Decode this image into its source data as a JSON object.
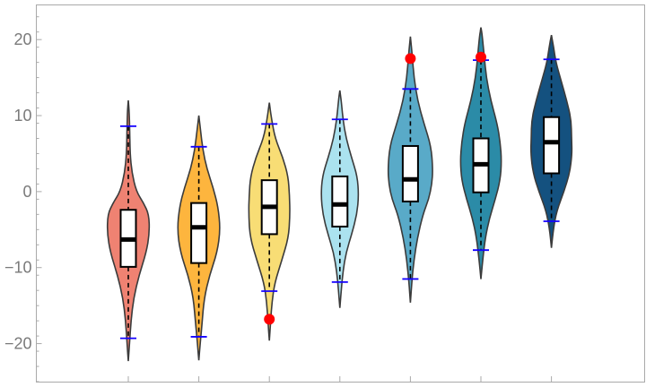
{
  "chart_data": {
    "type": "box-violin",
    "title": "",
    "xlabel": "",
    "ylabel": "",
    "ylim": [
      -25,
      24.5
    ],
    "yticks": [
      -20,
      -10,
      0,
      10,
      20
    ],
    "ytick_labels": [
      "−20",
      "−10",
      "0",
      "10",
      "20"
    ],
    "grid": false,
    "legend": "none",
    "series": [
      {
        "color": "#ef8272",
        "min": -19.3,
        "q1": -9.9,
        "median": -6.3,
        "q3": -2.4,
        "max": 8.6,
        "outliers": [],
        "violin": [
          [
            -22.3,
            0
          ],
          [
            -20,
            1.3
          ],
          [
            -17,
            3
          ],
          [
            -14,
            6
          ],
          [
            -11,
            12
          ],
          [
            -8,
            20
          ],
          [
            -5.5,
            23.5
          ],
          [
            -3,
            23
          ],
          [
            -1.5,
            17
          ],
          [
            0,
            9
          ],
          [
            2.5,
            4
          ],
          [
            5,
            2
          ],
          [
            8,
            1.5
          ],
          [
            10.5,
            1
          ],
          [
            12,
            0
          ]
        ]
      },
      {
        "color": "#fdb53e",
        "min": -19.1,
        "q1": -9.4,
        "median": -4.7,
        "q3": -1.5,
        "max": 5.9,
        "outliers": [],
        "violin": [
          [
            -22.2,
            0
          ],
          [
            -20,
            1.5
          ],
          [
            -17.5,
            3.5
          ],
          [
            -14,
            6
          ],
          [
            -11,
            12
          ],
          [
            -8,
            20.5
          ],
          [
            -5,
            24
          ],
          [
            -2,
            21.5
          ],
          [
            0.5,
            16
          ],
          [
            3,
            9
          ],
          [
            5.5,
            4.5
          ],
          [
            8,
            2
          ],
          [
            10,
            0
          ]
        ]
      },
      {
        "color": "#f8dd75",
        "min": -13.1,
        "q1": -5.6,
        "median": -2.0,
        "q3": 1.5,
        "max": 8.9,
        "outliers": [
          -16.8
        ],
        "violin": [
          [
            -19.6,
            0
          ],
          [
            -17,
            1.5
          ],
          [
            -14.5,
            3
          ],
          [
            -12,
            6
          ],
          [
            -9,
            14
          ],
          [
            -6,
            21.5
          ],
          [
            -3,
            23
          ],
          [
            -0.5,
            22.5
          ],
          [
            2,
            21
          ],
          [
            4.5,
            15
          ],
          [
            7,
            6.5
          ],
          [
            9.5,
            2.5
          ],
          [
            11.7,
            0
          ]
        ]
      },
      {
        "color": "#abe2ef",
        "min": -11.9,
        "q1": -4.6,
        "median": -1.7,
        "q3": 2.0,
        "max": 9.5,
        "outliers": [],
        "violin": [
          [
            -15.3,
            0
          ],
          [
            -13,
            1.5
          ],
          [
            -10.5,
            3.5
          ],
          [
            -8,
            7
          ],
          [
            -5.5,
            13.5
          ],
          [
            -3,
            19
          ],
          [
            -0.5,
            21
          ],
          [
            2,
            19.5
          ],
          [
            4.5,
            13
          ],
          [
            7,
            7
          ],
          [
            9.5,
            3.5
          ],
          [
            12,
            1.5
          ],
          [
            13.3,
            0
          ]
        ]
      },
      {
        "color": "#59aac8",
        "min": -11.5,
        "q1": -1.3,
        "median": 1.6,
        "q3": 6.0,
        "max": 13.5,
        "outliers": [
          17.5
        ],
        "violin": [
          [
            -14.6,
            0
          ],
          [
            -12,
            1.5
          ],
          [
            -9,
            4
          ],
          [
            -6,
            8
          ],
          [
            -3,
            14
          ],
          [
            -1,
            20.5
          ],
          [
            1,
            24
          ],
          [
            3,
            25
          ],
          [
            6,
            23
          ],
          [
            9,
            15
          ],
          [
            12,
            8
          ],
          [
            15,
            4
          ],
          [
            18,
            2
          ],
          [
            20.4,
            0
          ]
        ]
      },
      {
        "color": "#2b8ba7",
        "min": -7.7,
        "q1": -0.1,
        "median": 3.6,
        "q3": 7.0,
        "max": 17.3,
        "outliers": [
          17.7
        ],
        "violin": [
          [
            -11.5,
            0
          ],
          [
            -9,
            2
          ],
          [
            -6,
            5
          ],
          [
            -3.5,
            9.5
          ],
          [
            -1,
            16
          ],
          [
            1.5,
            21.5
          ],
          [
            4,
            23
          ],
          [
            6.5,
            21.5
          ],
          [
            9,
            18
          ],
          [
            12,
            11
          ],
          [
            15,
            6
          ],
          [
            18,
            3.5
          ],
          [
            20.5,
            1.5
          ],
          [
            21.6,
            0
          ]
        ]
      },
      {
        "color": "#14517f",
        "min": -3.9,
        "q1": 2.4,
        "median": 6.5,
        "q3": 9.8,
        "max": 17.4,
        "outliers": [],
        "violin": [
          [
            -7.4,
            0
          ],
          [
            -5,
            2
          ],
          [
            -2.5,
            6
          ],
          [
            0,
            14
          ],
          [
            2.5,
            20.5
          ],
          [
            5,
            23
          ],
          [
            7,
            22.5
          ],
          [
            9.5,
            22
          ],
          [
            12,
            17
          ],
          [
            14.5,
            11
          ],
          [
            17,
            5
          ],
          [
            19,
            2.5
          ],
          [
            20.6,
            0
          ]
        ]
      }
    ]
  }
}
